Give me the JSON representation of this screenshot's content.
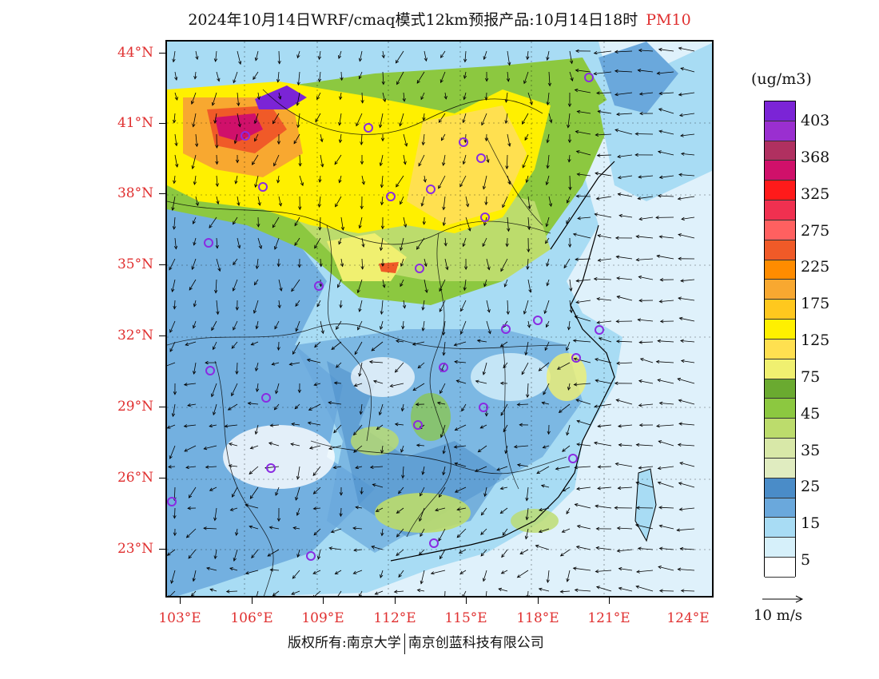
{
  "title": "2024年10月14日WRF/cmaq模式12km预报产品:10月14日18时",
  "pollutant": "PM10",
  "unit": "(ug/m3)",
  "lat_labels": [
    "44°N",
    "41°N",
    "38°N",
    "35°N",
    "32°N",
    "29°N",
    "26°N",
    "23°N"
  ],
  "lon_labels": [
    "103°E",
    "106°E",
    "109°E",
    "112°E",
    "115°E",
    "118°E",
    "121°E",
    "124°E"
  ],
  "legend": {
    "labels": [
      "403",
      "368",
      "325",
      "275",
      "225",
      "175",
      "125",
      "75",
      "45",
      "35",
      "25",
      "15",
      "5"
    ],
    "colors": [
      "#7b24d6",
      "#9a2fd0",
      "#b03060",
      "#d0106a",
      "#ff1a1a",
      "#f03050",
      "#ff6060",
      "#f05a28",
      "#ff8c00",
      "#f8a830",
      "#ffc81e",
      "#fff000",
      "#ffe050",
      "#f0f070",
      "#6aaa30",
      "#8cc840",
      "#bcdc6c",
      "#d8e8a8",
      "#e0ecc0",
      "#4a8cc8",
      "#6aa8dc",
      "#a8dcf4",
      "#d6f0fa",
      "#ffffff"
    ]
  },
  "wind_scale": "10 m/s",
  "copyright": {
    "left": "版权所有:南京大学",
    "right": "南京创蓝科技有限公司"
  },
  "map_colors": {
    "background": "#dff1fb",
    "low": "#b7e2f6",
    "mid_low": "#6aa8dc",
    "mid": "#4a8cc8",
    "green": "#8cc840",
    "yellow": "#fff000",
    "high": "#f05a28",
    "very_high": "#7b24d6",
    "city_marker": "#8a2be2"
  }
}
